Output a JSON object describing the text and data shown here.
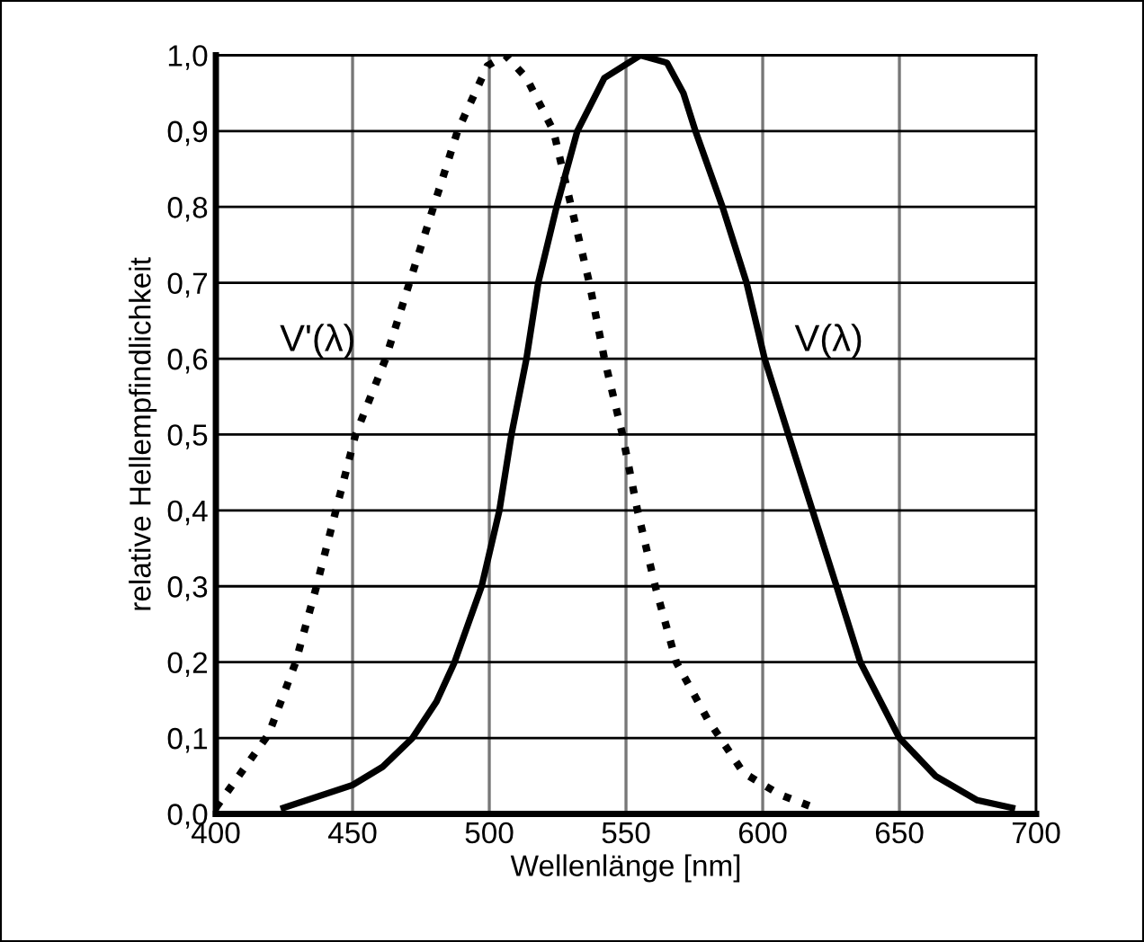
{
  "chart_data": {
    "type": "line",
    "xlabel": "Wellenlänge [nm]",
    "ylabel": "relative Hellempfindlichkeit",
    "xlim": [
      400,
      700
    ],
    "xticks": [
      400,
      450,
      500,
      550,
      600,
      650,
      700
    ],
    "ylim": [
      0,
      1.0
    ],
    "yticks": [
      {
        "value": 0,
        "label": "0,0"
      },
      {
        "value": 0.1,
        "label": "0,1"
      },
      {
        "value": 0.2,
        "label": "0,2"
      },
      {
        "value": 0.3,
        "label": "0,3"
      },
      {
        "value": 0.4,
        "label": "0,4"
      },
      {
        "value": 0.5,
        "label": "0,5"
      },
      {
        "value": 0.6,
        "label": "0,6"
      },
      {
        "value": 0.7,
        "label": "0,7"
      },
      {
        "value": 0.8,
        "label": "0,8"
      },
      {
        "value": 0.9,
        "label": "0,9"
      },
      {
        "value": 1.0,
        "label": "1,0"
      }
    ],
    "grid": true,
    "legend": false,
    "marker": "none",
    "series": [
      {
        "name": "V'(λ)",
        "color": "#000000",
        "line_style": "dotted",
        "x": [
          400,
          419.3,
          429.2,
          436.8,
          443.9,
          451.1,
          462.1,
          470.8,
          479.6,
          488.4,
          499.3,
          505.9,
          513.6,
          523.5,
          530,
          536.6,
          542.1,
          548.7,
          554.2,
          560.7,
          568.4,
          579.8,
          593,
          606,
          618.9
        ],
        "values": [
          0.008,
          0.105,
          0.2,
          0.3,
          0.4,
          0.5,
          0.6,
          0.7,
          0.8,
          0.9,
          0.986,
          1.0,
          0.97,
          0.9,
          0.8,
          0.7,
          0.6,
          0.5,
          0.4,
          0.3,
          0.2,
          0.125,
          0.054,
          0.026,
          0.008
        ]
      },
      {
        "name": "V(λ)",
        "color": "#000000",
        "line_style": "solid",
        "x": [
          424.8,
          450,
          461,
          471.9,
          480.7,
          487.3,
          497.2,
          503.7,
          508.1,
          513.6,
          517.9,
          524.6,
          532.2,
          542.1,
          555.3,
          565,
          571,
          575.4,
          585.3,
          594.1,
          600.7,
          609.4,
          618.2,
          627,
          635.7,
          650,
          663.2,
          678.5,
          691.2
        ],
        "values": [
          0.008,
          0.038,
          0.062,
          0.1,
          0.148,
          0.2,
          0.3,
          0.4,
          0.5,
          0.6,
          0.7,
          0.8,
          0.9,
          0.97,
          1.0,
          0.99,
          0.95,
          0.9,
          0.8,
          0.7,
          0.6,
          0.5,
          0.4,
          0.3,
          0.2,
          0.1,
          0.05,
          0.018,
          0.008
        ]
      }
    ]
  }
}
